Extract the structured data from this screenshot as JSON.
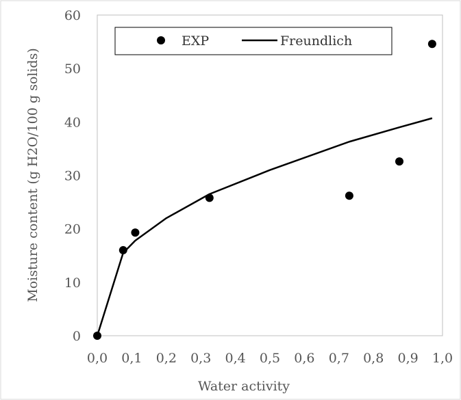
{
  "chart_data": {
    "type": "scatter",
    "title": "",
    "xlabel": "Water activity",
    "ylabel": "Moisture content (g H2O/100 g solids)",
    "xlim": [
      0,
      1
    ],
    "ylim": [
      0,
      60
    ],
    "x_ticks": [
      "0,0",
      "0,1",
      "0,2",
      "0,3",
      "0,4",
      "0,5",
      "0,6",
      "0,7",
      "0,8",
      "0,9",
      "1,0"
    ],
    "y_ticks": [
      "0",
      "10",
      "20",
      "30",
      "40",
      "50",
      "60"
    ],
    "legend_position": "top",
    "grid": false,
    "series": [
      {
        "name": "EXP",
        "style": "markers",
        "color": "#000000",
        "x": [
          0.0,
          0.075,
          0.11,
          0.325,
          0.73,
          0.875,
          0.97
        ],
        "y": [
          0.0,
          16.0,
          19.3,
          25.8,
          26.2,
          32.6,
          54.6
        ]
      },
      {
        "name": "Freundlich",
        "style": "line",
        "color": "#000000",
        "x": [
          0.0,
          0.075,
          0.11,
          0.2,
          0.325,
          0.5,
          0.73,
          0.875,
          0.97
        ],
        "y": [
          0.0,
          15.5,
          17.8,
          22.0,
          26.5,
          31.0,
          36.3,
          39.0,
          40.7
        ]
      }
    ]
  }
}
